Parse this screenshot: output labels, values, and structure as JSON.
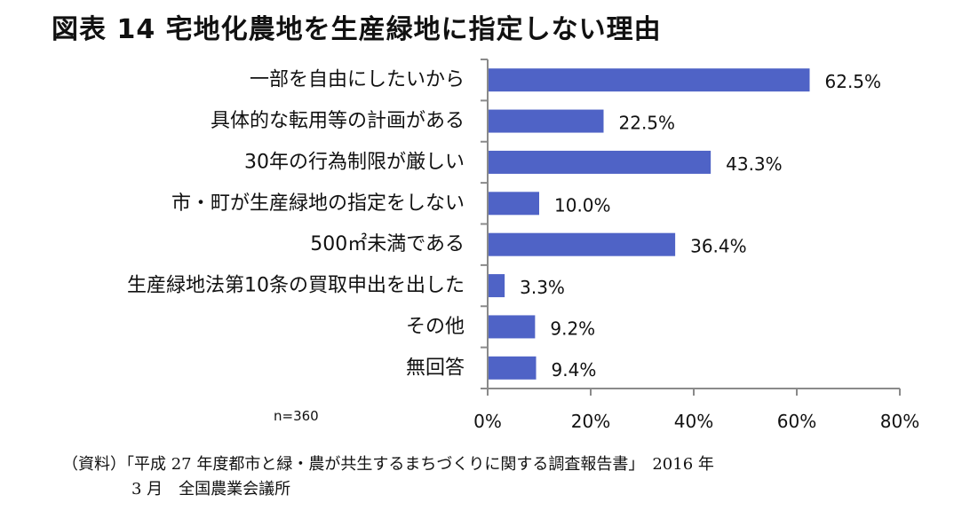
{
  "title": "図表 14  宅地化農地を生産緑地に指定しない理由",
  "chart_data": {
    "type": "bar",
    "orientation": "horizontal",
    "categories": [
      "一部を自由にしたいから",
      "具体的な転用等の計画がある",
      "30年の行為制限が厳しい",
      "市・町が生産緑地の指定をしない",
      "500㎡未満である",
      "生産緑地法第10条の買取申出を出した",
      "その他",
      "無回答"
    ],
    "values": [
      62.5,
      22.5,
      43.3,
      10.0,
      36.4,
      3.3,
      9.2,
      9.4
    ],
    "value_labels": [
      "62.5%",
      "22.5%",
      "43.3%",
      "10.0%",
      "36.4%",
      "3.3%",
      "9.2%",
      "9.4%"
    ],
    "xlim": [
      0,
      80
    ],
    "x_ticks": [
      0,
      20,
      40,
      60,
      80
    ],
    "x_tick_labels": [
      "0%",
      "20%",
      "40%",
      "60%",
      "80%"
    ],
    "grid": false,
    "bar_color": "#4f63c6",
    "axis_color": "#8a8a8a"
  },
  "note": "n=360",
  "source": {
    "line1": "（資料）「平成 27 年度都市と緑・農が共生するまちづくりに関する調査報告書」　2016 年",
    "line2": "3 月　全国農業会議所"
  }
}
